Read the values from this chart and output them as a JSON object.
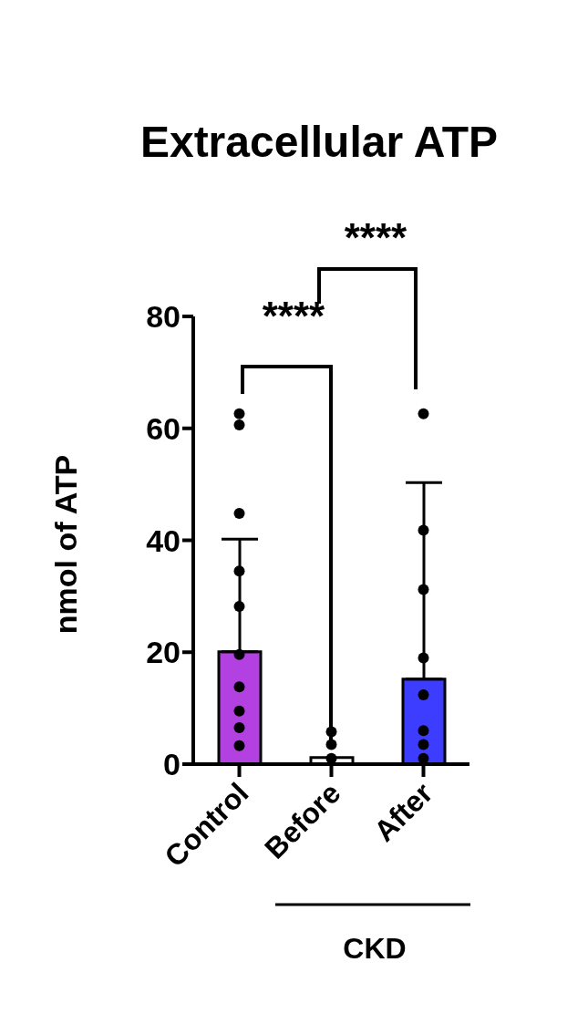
{
  "chart_data": {
    "type": "bar",
    "title": "Extracellular ATP",
    "ylabel": "nmol of ATP",
    "categories": [
      "Control",
      "Before",
      "After"
    ],
    "series": [
      {
        "values": [
          20.1,
          1.2,
          15.2
        ],
        "colors": [
          "#b340e0",
          "#ffffff",
          "#3d3dff"
        ],
        "errors": [
          [
            20.1,
            40.2
          ],
          null,
          [
            15.2,
            50.3
          ]
        ]
      },
      {
        "type": "scatter",
        "color": "#000000",
        "x": [
          "Control",
          "Control",
          "Control",
          "Control",
          "Control",
          "Control",
          "Control",
          "Control",
          "Control",
          "Control",
          "Before",
          "Before",
          "Before",
          "After",
          "After",
          "After",
          "After",
          "After",
          "After",
          "After",
          "After"
        ],
        "values": [
          62.6,
          60.6,
          44.8,
          34.5,
          28.2,
          19.6,
          13.8,
          9.5,
          6.5,
          3.3,
          5.8,
          3.5,
          1.0,
          62.6,
          41.8,
          31.2,
          19.0,
          12.4,
          6.0,
          3.5,
          1.0
        ]
      }
    ],
    "ylim": [
      0,
      80
    ],
    "yticks": [
      0,
      20,
      40,
      60,
      80
    ],
    "grid": false,
    "legend": false,
    "marker": "circle",
    "annotations": [
      "****",
      "****",
      "CKD"
    ]
  }
}
